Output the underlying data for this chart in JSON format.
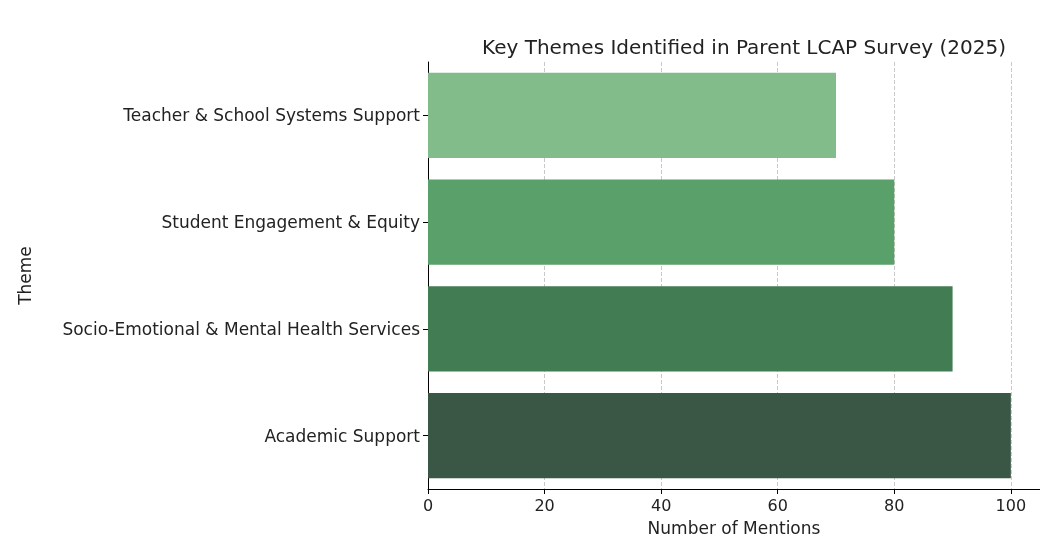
{
  "chart_data": {
    "type": "bar",
    "orientation": "horizontal",
    "title": "Key Themes Identified in Parent LCAP Survey (2025)",
    "xlabel": "Number of Mentions",
    "ylabel": "Theme",
    "categories": [
      "Teacher & School Systems Support",
      "Student Engagement & Equity",
      "Socio-Emotional & Mental Health Services",
      "Academic Support"
    ],
    "values": [
      70,
      80,
      90,
      100
    ],
    "colors": [
      "#82bc8a",
      "#5aa06a",
      "#427c52",
      "#3a5644"
    ],
    "xlim": [
      0,
      105
    ],
    "xticks": [
      0,
      20,
      40,
      60,
      80,
      100
    ],
    "grid": "x"
  }
}
